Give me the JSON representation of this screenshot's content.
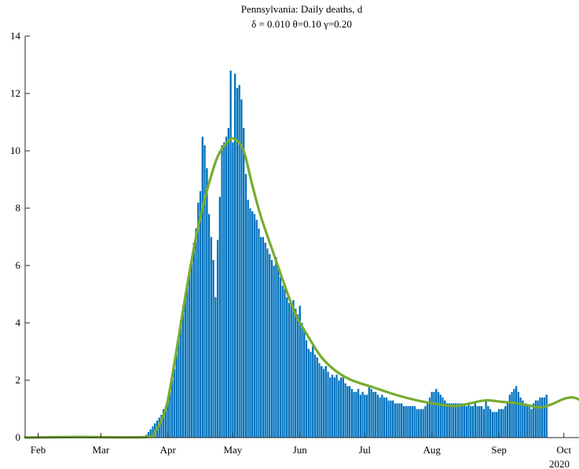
{
  "chart_data": {
    "type": "bar",
    "title": "Pennsylvania: Daily deaths, d",
    "subtitle": "δ = 0.010  θ=0.10  γ=0.20",
    "xlabel": "",
    "ylabel": "",
    "ylim": [
      0,
      14
    ],
    "yticks": [
      0,
      2,
      4,
      6,
      8,
      10,
      12,
      14
    ],
    "xlim": [
      "2020-01-26",
      "2020-10-08"
    ],
    "xticks": [
      {
        "date": "2020-02-01",
        "label": "Feb"
      },
      {
        "date": "2020-03-01",
        "label": "Mar"
      },
      {
        "date": "2020-04-01",
        "label": "Apr"
      },
      {
        "date": "2020-05-01",
        "label": "May"
      },
      {
        "date": "2020-06-01",
        "label": "Jun"
      },
      {
        "date": "2020-07-01",
        "label": "Jul"
      },
      {
        "date": "2020-08-01",
        "label": "Aug"
      },
      {
        "date": "2020-09-01",
        "label": "Sep"
      },
      {
        "date": "2020-10-01",
        "label": "Oct"
      }
    ],
    "year_label": "2020",
    "grid": false,
    "colors": {
      "bars": "#0072BD",
      "fit": "#77AC30"
    },
    "series": [
      {
        "kind": "bar",
        "start_date": "2020-03-22",
        "values": [
          0.1,
          0.2,
          0.3,
          0.4,
          0.5,
          0.6,
          0.7,
          0.8,
          1.0,
          1.1,
          1.3,
          1.6,
          2.0,
          2.4,
          2.9,
          3.6,
          4.1,
          4.6,
          5.0,
          5.4,
          5.8,
          6.1,
          6.8,
          7.3,
          8.2,
          8.6,
          10.5,
          10.2,
          9.4,
          7.8,
          7.0,
          6.2,
          4.9,
          6.9,
          8.4,
          10.2,
          10.3,
          10.5,
          10.8,
          12.8,
          10.3,
          12.7,
          12.2,
          12.3,
          11.8,
          10.8,
          9.2,
          8.3,
          8.0,
          7.9,
          7.8,
          7.6,
          7.3,
          7.0,
          7.0,
          6.8,
          6.6,
          6.4,
          6.2,
          6.0,
          6.3,
          5.9,
          5.6,
          5.3,
          5.2,
          4.9,
          4.7,
          4.7,
          4.8,
          4.5,
          4.3,
          4.6,
          4.0,
          3.7,
          3.4,
          3.1,
          3.0,
          3.2,
          2.9,
          2.8,
          2.6,
          2.5,
          2.4,
          2.5,
          2.3,
          2.1,
          2.2,
          2.1,
          2.2,
          2.0,
          2.1,
          2.1,
          1.9,
          1.8,
          1.8,
          1.7,
          1.6,
          1.6,
          1.7,
          1.5,
          1.6,
          1.5,
          1.5,
          1.8,
          1.7,
          1.6,
          1.6,
          1.5,
          1.4,
          1.5,
          1.4,
          1.4,
          1.3,
          1.3,
          1.3,
          1.2,
          1.2,
          1.2,
          1.2,
          1.1,
          1.1,
          1.1,
          1.1,
          1.1,
          1.1,
          1.0,
          1.0,
          1.0,
          1.0,
          1.1,
          1.2,
          1.4,
          1.6,
          1.6,
          1.7,
          1.6,
          1.5,
          1.4,
          1.3,
          1.2,
          1.2,
          1.2,
          1.2,
          1.2,
          1.2,
          1.2,
          1.2,
          1.2,
          1.1,
          1.2,
          1.1,
          1.1,
          1.2,
          1.1,
          1.1,
          1.1,
          1.0,
          1.3,
          1.1,
          1.0,
          0.9,
          0.9,
          0.9,
          1.0,
          1.0,
          1.0,
          1.1,
          1.2,
          1.5,
          1.6,
          1.7,
          1.8,
          1.6,
          1.4,
          1.3,
          1.2,
          1.1,
          1.1,
          1.0,
          1.2,
          1.3,
          1.3,
          1.4,
          1.4,
          1.4,
          1.5
        ]
      },
      {
        "kind": "line",
        "points": [
          [
            "2020-01-26",
            0
          ],
          [
            "2020-02-20",
            0.02
          ],
          [
            "2020-03-22",
            0.02
          ],
          [
            "2020-03-26",
            0.2
          ],
          [
            "2020-03-31",
            1.0
          ],
          [
            "2020-04-04",
            2.6
          ],
          [
            "2020-04-09",
            4.9
          ],
          [
            "2020-04-14",
            7.0
          ],
          [
            "2020-04-19",
            8.6
          ],
          [
            "2020-04-24",
            9.8
          ],
          [
            "2020-04-29",
            10.35
          ],
          [
            "2020-05-02",
            10.4
          ],
          [
            "2020-05-06",
            10.0
          ],
          [
            "2020-05-10",
            8.8
          ],
          [
            "2020-05-14",
            7.7
          ],
          [
            "2020-05-19",
            6.6
          ],
          [
            "2020-05-25",
            5.3
          ],
          [
            "2020-05-30",
            4.3
          ],
          [
            "2020-06-05",
            3.5
          ],
          [
            "2020-06-11",
            2.8
          ],
          [
            "2020-06-18",
            2.3
          ],
          [
            "2020-06-25",
            2.0
          ],
          [
            "2020-07-05",
            1.75
          ],
          [
            "2020-07-15",
            1.5
          ],
          [
            "2020-07-25",
            1.3
          ],
          [
            "2020-08-05",
            1.15
          ],
          [
            "2020-08-12",
            1.1
          ],
          [
            "2020-08-19",
            1.2
          ],
          [
            "2020-08-26",
            1.3
          ],
          [
            "2020-09-02",
            1.25
          ],
          [
            "2020-09-09",
            1.2
          ],
          [
            "2020-09-16",
            1.1
          ],
          [
            "2020-09-20",
            1.05
          ],
          [
            "2020-09-25",
            1.15
          ],
          [
            "2020-10-01",
            1.35
          ],
          [
            "2020-10-05",
            1.4
          ],
          [
            "2020-10-08",
            1.33
          ]
        ]
      }
    ]
  }
}
